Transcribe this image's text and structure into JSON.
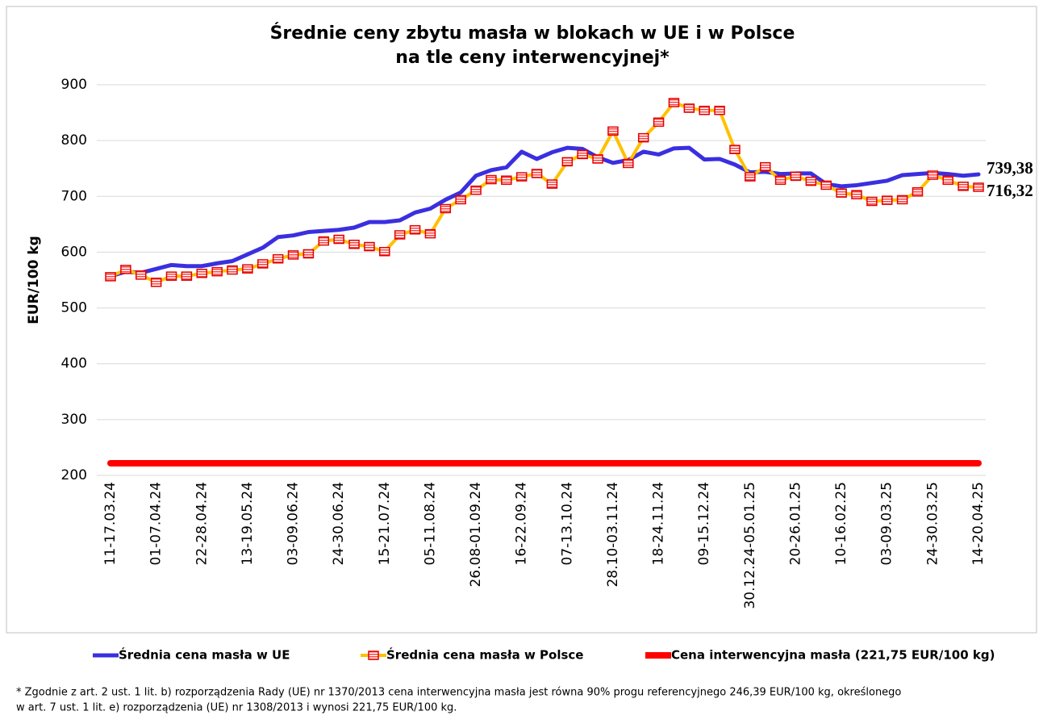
{
  "chart_data": {
    "type": "line",
    "title": [
      "Średnie ceny zbytu masła w blokach w UE i w Polsce",
      "na tle ceny interwencyjnej*"
    ],
    "y_label": "EUR/100 kg",
    "categories": [
      "11-17.03.24",
      null,
      null,
      "01-07.04.24",
      null,
      null,
      "22-28.04.24",
      null,
      null,
      "13-19.05.24",
      null,
      null,
      "03-09.06.24",
      null,
      null,
      "24-30.06.24",
      null,
      null,
      "15-21.07.24",
      null,
      null,
      "05-11.08.24",
      null,
      null,
      "26.08-01.09.24",
      null,
      null,
      "16-22.09.24",
      null,
      null,
      "07-13.10.24",
      null,
      null,
      "28.10-03.11.24",
      null,
      null,
      "18-24.11.24",
      null,
      null,
      "09-15.12.24",
      null,
      null,
      "30.12.24-05.01.25",
      null,
      null,
      "20-26.01.25",
      null,
      null,
      "10-16.02.25",
      null,
      null,
      "03-09.03.25",
      null,
      null,
      "24-30.03.25",
      null,
      null,
      "14-20.04.25"
    ],
    "series": [
      {
        "name": "Średnia cena masła w UE",
        "color": "#3a2fe0",
        "marker": false,
        "values": [
          557,
          565,
          563,
          570,
          577,
          575,
          575,
          580,
          584,
          596,
          608,
          627,
          630,
          636,
          638,
          640,
          644,
          654,
          654,
          657,
          671,
          678,
          694,
          707,
          737,
          747,
          752,
          780,
          767,
          779,
          787,
          785,
          770,
          760,
          765,
          780,
          775,
          786,
          787,
          766,
          767,
          757,
          743,
          744,
          740,
          741,
          741,
          722,
          718,
          720,
          724,
          728,
          738,
          740,
          742,
          740,
          737,
          739.38
        ],
        "value_labels": [
          null,
          null,
          null,
          null,
          null,
          null,
          null,
          null,
          null,
          null,
          null,
          null,
          null,
          null,
          null,
          null,
          null,
          null,
          null,
          null,
          null,
          null,
          null,
          null,
          null,
          null,
          null,
          null,
          null,
          null,
          null,
          null,
          null,
          null,
          null,
          null,
          null,
          null,
          null,
          null,
          null,
          null,
          null,
          null,
          null,
          null,
          null,
          null,
          null,
          null,
          null,
          null,
          null,
          null,
          null,
          null,
          null,
          "739,38"
        ],
        "label_color": "#2a24e8"
      },
      {
        "name": "Średnia cena masła w Polsce",
        "color": "#ffc000",
        "marker": true,
        "values": [
          556,
          569,
          559,
          546,
          557,
          557,
          562,
          565,
          568,
          570,
          579,
          588,
          595,
          597,
          620,
          623,
          614,
          610,
          601,
          631,
          640,
          633,
          678,
          694,
          711,
          730,
          729,
          735,
          741,
          722,
          762,
          775,
          767,
          817,
          759,
          805,
          833,
          868,
          858,
          854,
          854,
          784,
          735,
          753,
          729,
          736,
          727,
          720,
          706,
          703,
          691,
          693,
          694,
          708,
          738,
          729,
          718,
          716.32
        ],
        "value_labels": [
          null,
          null,
          null,
          null,
          null,
          null,
          null,
          null,
          null,
          null,
          null,
          null,
          null,
          null,
          null,
          null,
          null,
          null,
          null,
          null,
          null,
          null,
          null,
          null,
          null,
          null,
          null,
          null,
          null,
          null,
          null,
          null,
          null,
          null,
          null,
          null,
          null,
          null,
          null,
          null,
          null,
          null,
          null,
          null,
          null,
          null,
          null,
          null,
          null,
          null,
          null,
          null,
          null,
          null,
          null,
          null,
          null,
          "716,32"
        ],
        "label_color": "#ff0000"
      },
      {
        "name": "Cena interwencyjna masła (221,75 EUR/100 kg)",
        "color": "#ff0000",
        "marker": false,
        "values": [
          221.75,
          221.75,
          221.75,
          221.75,
          221.75,
          221.75,
          221.75,
          221.75,
          221.75,
          221.75,
          221.75,
          221.75,
          221.75,
          221.75,
          221.75,
          221.75,
          221.75,
          221.75,
          221.75,
          221.75,
          221.75,
          221.75,
          221.75,
          221.75,
          221.75,
          221.75,
          221.75,
          221.75,
          221.75,
          221.75,
          221.75,
          221.75,
          221.75,
          221.75,
          221.75,
          221.75,
          221.75,
          221.75,
          221.75,
          221.75,
          221.75,
          221.75,
          221.75,
          221.75,
          221.75,
          221.75,
          221.75,
          221.75,
          221.75,
          221.75,
          221.75,
          221.75,
          221.75,
          221.75,
          221.75,
          221.75,
          221.75,
          221.75
        ]
      }
    ],
    "ylim": [
      200,
      900
    ],
    "yticks": [
      200,
      300,
      400,
      500,
      600,
      700,
      800,
      900
    ],
    "grid": true,
    "footnote": [
      "* Zgodnie z art. 2 ust. 1 lit. b)  rozporządzenia Rady (UE) nr 1370/2013 cena interwencyjna masła jest równa 90% progu referencyjnego 246,39 EUR/100 kg, określonego",
      "w art. 7 ust. 1 lit. e) rozporządzenia (UE) nr 1308/2013 i wynosi 221,75 EUR/100 kg."
    ]
  }
}
